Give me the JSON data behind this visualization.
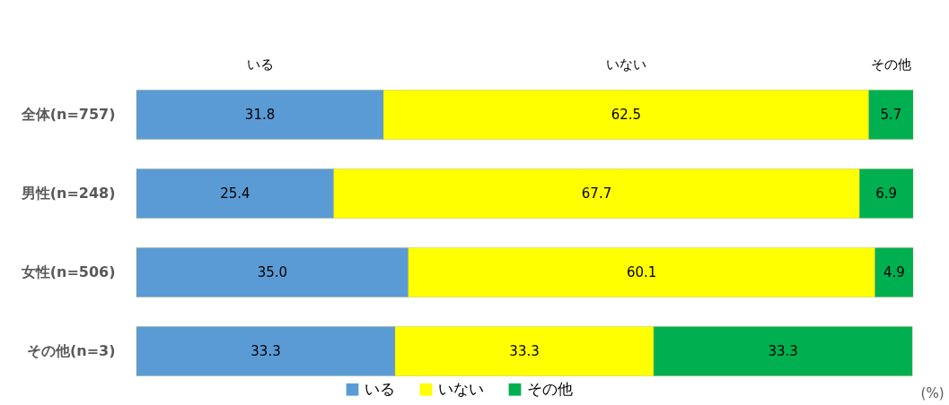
{
  "chart_data": {
    "type": "bar",
    "orientation": "horizontal",
    "stacked": true,
    "categories": [
      "全体(n=757)",
      "男性(n=248)",
      "女性(n=506)",
      "その他(n=3)"
    ],
    "series": [
      {
        "name": "いる",
        "color": "#5b9bd5",
        "values": [
          31.8,
          25.4,
          35.0,
          33.3
        ],
        "value_labels": [
          "31.8",
          "25.4",
          "35.0",
          "33.3"
        ]
      },
      {
        "name": "いない",
        "color": "#ffff00",
        "values": [
          62.5,
          67.7,
          60.1,
          33.3
        ],
        "value_labels": [
          "62.5",
          "67.7",
          "60.1",
          "33.3"
        ]
      },
      {
        "name": "その他",
        "color": "#00b050",
        "values": [
          5.7,
          6.9,
          4.9,
          33.3
        ],
        "value_labels": [
          "5.7",
          "6.9",
          "4.9",
          "33.3"
        ]
      }
    ],
    "xlim": [
      0,
      100
    ],
    "xlabel": "(%)",
    "tick_labels": "y",
    "legend": "bottom",
    "annotations": [
      "いる",
      "いない",
      "その他"
    ]
  }
}
